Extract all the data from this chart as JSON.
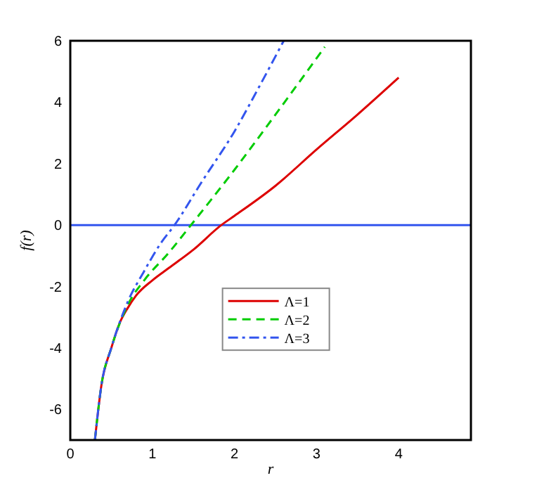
{
  "chart_data": {
    "type": "line",
    "xlabel": "r",
    "ylabel": "f(r)",
    "xlim": [
      0,
      4.88
    ],
    "ylim": [
      -7,
      6
    ],
    "xticks": [
      0,
      1,
      2,
      3,
      4
    ],
    "yticks": [
      -6,
      -4,
      -2,
      0,
      2,
      4,
      6
    ],
    "grid": false,
    "legend": "center",
    "marker": "none",
    "ref_lines": [
      {
        "axis": "y",
        "value": 0,
        "color": "#3355ee",
        "line_style": "solid"
      }
    ],
    "series": [
      {
        "name": "Λ=1",
        "color": "#dd0000",
        "line_style": "solid",
        "x": [
          0.3,
          0.38,
          0.5,
          0.6,
          0.7,
          0.8,
          1.0,
          1.2,
          1.5,
          1.84,
          2.0,
          2.5,
          3.0,
          3.5,
          4.0
        ],
        "values": [
          -7,
          -5.2,
          -4.0,
          -3.2,
          -2.7,
          -2.3,
          -1.8,
          -1.4,
          -0.8,
          0,
          0.3,
          1.28,
          2.46,
          3.6,
          4.8
        ]
      },
      {
        "name": "Λ=2",
        "color": "#00cc00",
        "line_style": "dashed",
        "x": [
          0.3,
          0.38,
          0.5,
          0.7,
          0.9,
          1.2,
          1.47,
          2.0,
          2.5,
          3.1
        ],
        "values": [
          -7,
          -5.2,
          -4.0,
          -2.6,
          -1.8,
          -0.9,
          0,
          1.8,
          3.6,
          5.8
        ]
      },
      {
        "name": "Λ=3",
        "color": "#3355ee",
        "line_style": "dashdot",
        "x": [
          0.3,
          0.38,
          0.5,
          0.7,
          0.9,
          1.1,
          1.27,
          1.6,
          2.0,
          2.3,
          2.6
        ],
        "values": [
          -7,
          -5.2,
          -4.0,
          -2.5,
          -1.5,
          -0.6,
          0,
          1.4,
          3.05,
          4.5,
          6
        ]
      }
    ]
  }
}
